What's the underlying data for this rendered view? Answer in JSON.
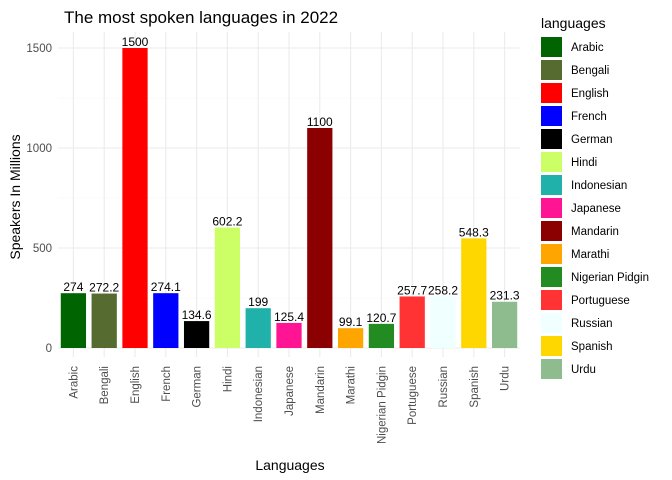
{
  "chart_data": {
    "type": "bar",
    "title": "The most spoken languages in 2022",
    "xlabel": "Languages",
    "ylabel": "Speakers In Millions",
    "ylim": [
      0,
      1575
    ],
    "yticks": [
      0,
      500,
      1000,
      1500
    ],
    "grid": true,
    "legend_title": "languages",
    "legend_position": "right",
    "bars": [
      {
        "category": "Arabic",
        "value": 274,
        "label": "274",
        "color": "#006400"
      },
      {
        "category": "Bengali",
        "value": 272.2,
        "label": "272.2",
        "color": "#556B2F"
      },
      {
        "category": "English",
        "value": 1500,
        "label": "1500",
        "color": "#FF0000"
      },
      {
        "category": "French",
        "value": 274.1,
        "label": "274.1",
        "color": "#0000FF"
      },
      {
        "category": "German",
        "value": 134.6,
        "label": "134.6",
        "color": "#000000"
      },
      {
        "category": "Hindi",
        "value": 602.2,
        "label": "602.2",
        "color": "#CCFF66"
      },
      {
        "category": "Indonesian",
        "value": 199,
        "label": "199",
        "color": "#20B2AA"
      },
      {
        "category": "Japanese",
        "value": 125.4,
        "label": "125.4",
        "color": "#FF1493"
      },
      {
        "category": "Mandarin",
        "value": 1100,
        "label": "1100",
        "color": "#8B0000"
      },
      {
        "category": "Marathi",
        "value": 99.1,
        "label": "99.1",
        "color": "#FFA500"
      },
      {
        "category": "Nigerian Pidgin",
        "value": 120.7,
        "label": "120.7",
        "color": "#228B22"
      },
      {
        "category": "Portuguese",
        "value": 257.7,
        "label": "257.7",
        "color": "#FF3333"
      },
      {
        "category": "Russian",
        "value": 258.2,
        "label": "258.2",
        "color": "#F0FFFF"
      },
      {
        "category": "Spanish",
        "value": 548.3,
        "label": "548.3",
        "color": "#FFD700"
      },
      {
        "category": "Urdu",
        "value": 231.3,
        "label": "231.3",
        "color": "#8FBC8F"
      }
    ]
  }
}
